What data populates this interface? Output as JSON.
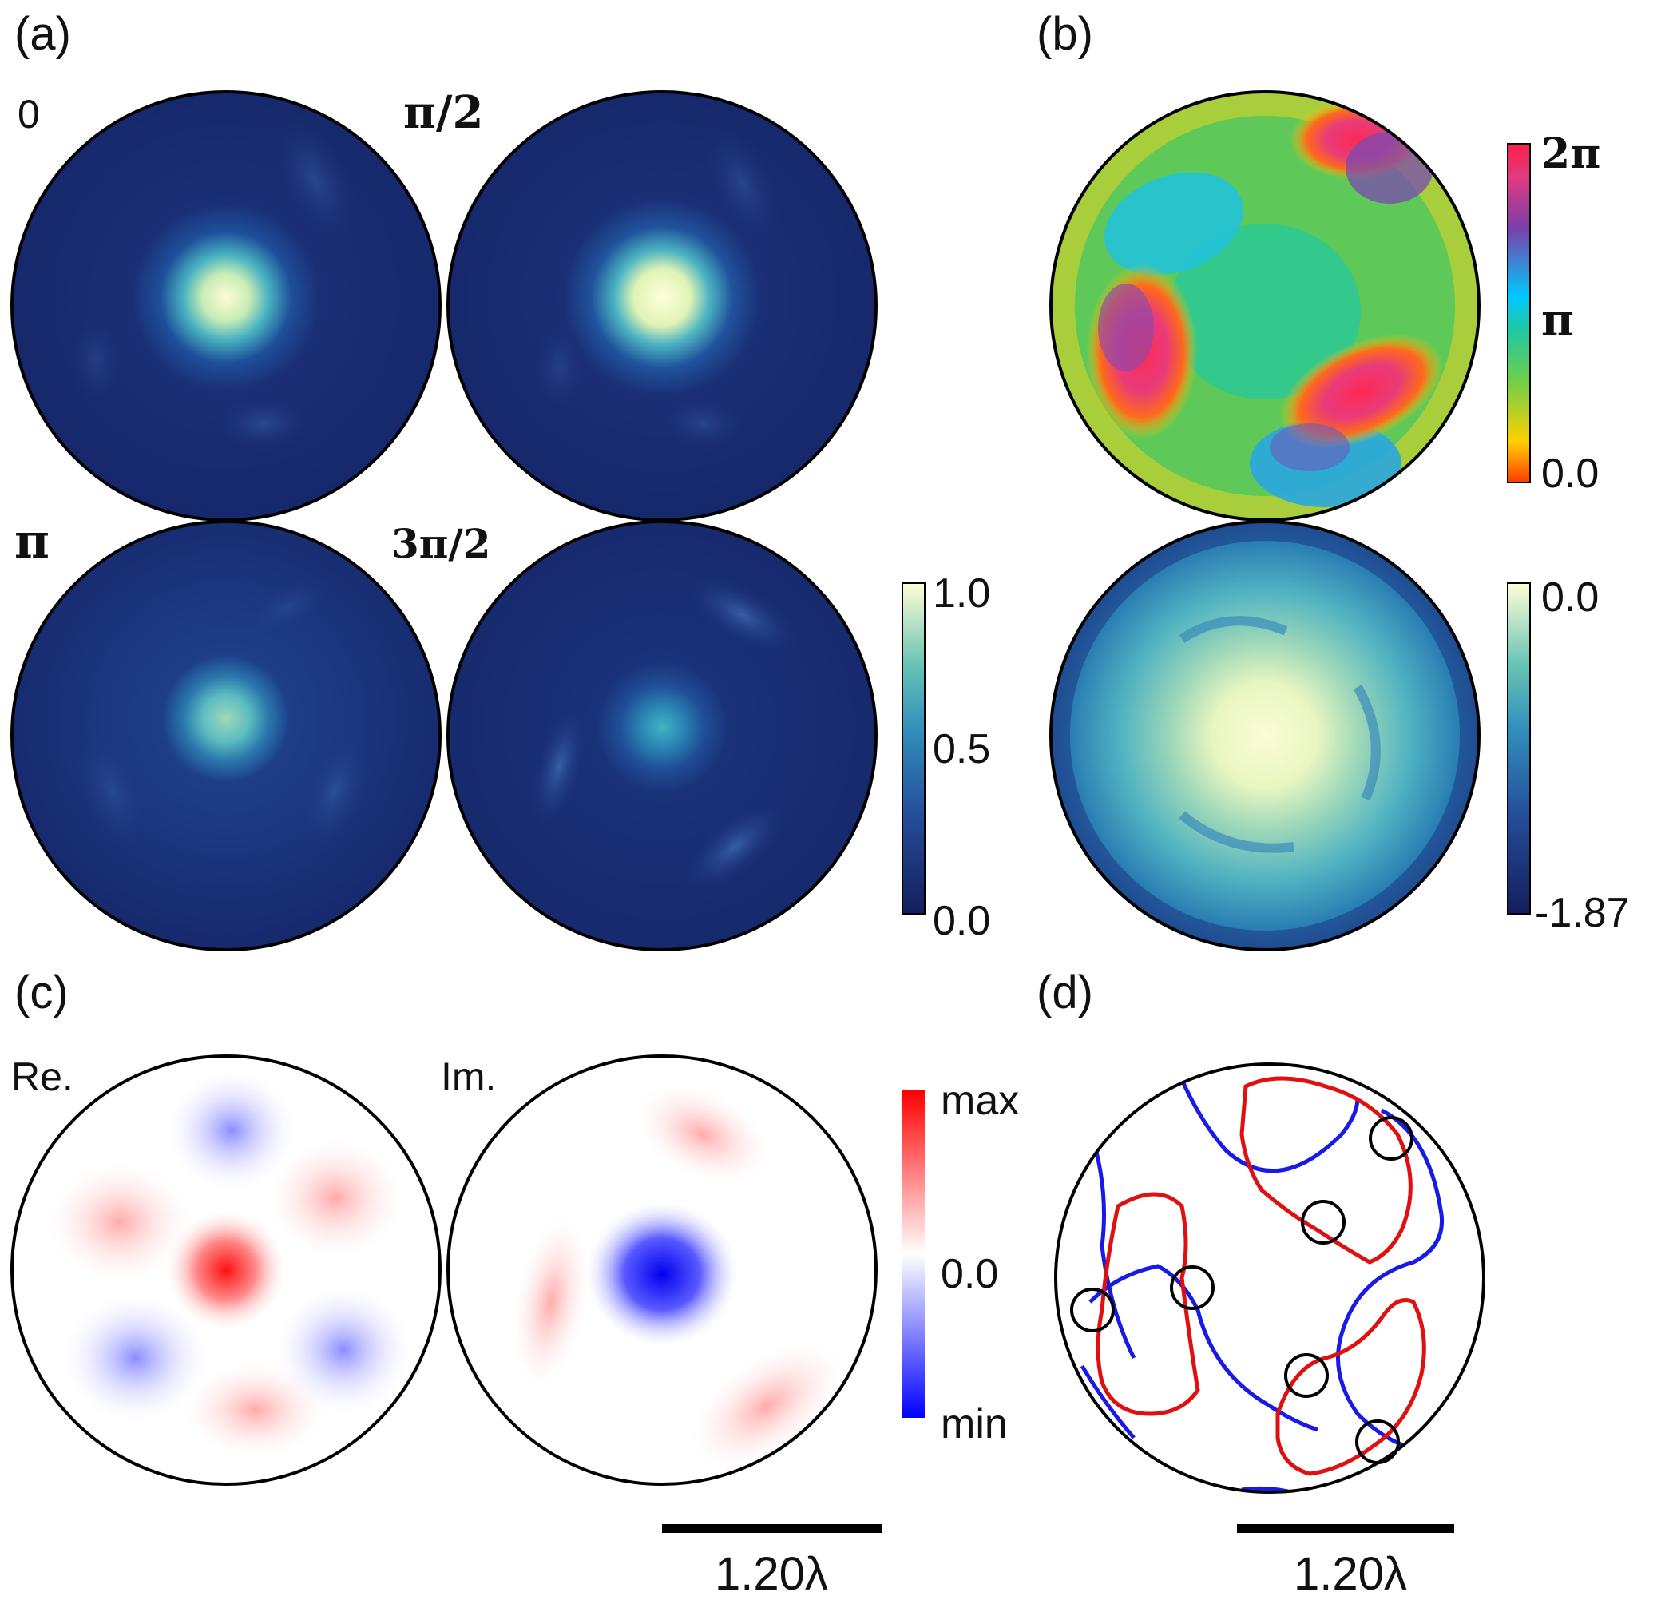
{
  "panels": {
    "a": {
      "label": "(a)",
      "phase_labels": [
        "0",
        "π/2",
        "π",
        "3π/2"
      ],
      "colorbar": {
        "ticks": [
          "1.0",
          "0.5",
          "0.0"
        ],
        "colors": [
          "#131e5c",
          "#2a73a9",
          "#66c3b4",
          "#fffed6"
        ]
      }
    },
    "b": {
      "label": "(b)",
      "phase_colorbar": {
        "ticks": [
          "2π",
          "π",
          "0.0"
        ],
        "colors": [
          "#ff3b00",
          "#ffd000",
          "#6fcf4a",
          "#00c8ff",
          "#7b3fa8",
          "#ff1f4a"
        ]
      },
      "log_colorbar": {
        "ticks": [
          "0.0",
          "-1.87"
        ],
        "colors": [
          "#131e5c",
          "#2a73a9",
          "#66c3b4",
          "#fffed6"
        ]
      }
    },
    "c": {
      "label": "(c)",
      "sub_labels": [
        "Re.",
        "Im."
      ],
      "colorbar": {
        "ticks": [
          "max",
          "0.0",
          "min"
        ],
        "colors": [
          "#0000ff",
          "#ffffff",
          "#ff0000"
        ]
      },
      "scalebar": "1.20λ"
    },
    "d": {
      "label": "(d)",
      "line_colors": [
        "#e01010",
        "#1010e0"
      ],
      "scalebar": "1.20λ"
    }
  }
}
